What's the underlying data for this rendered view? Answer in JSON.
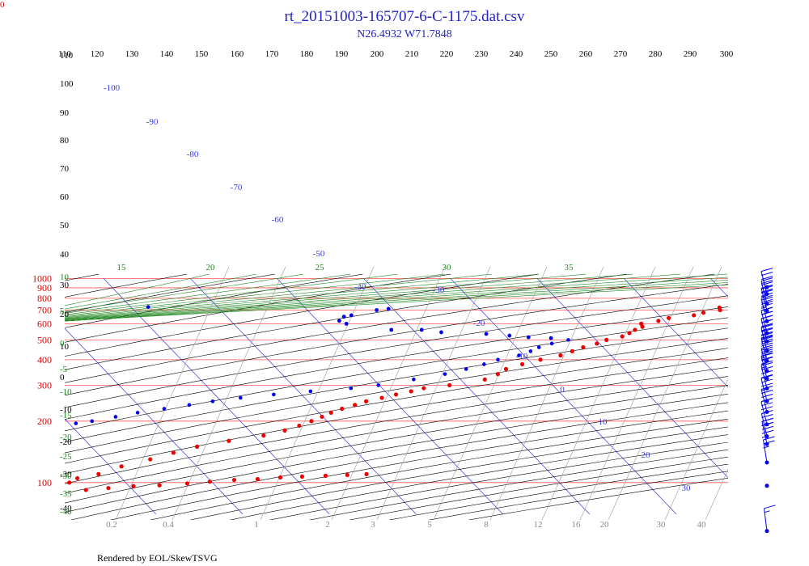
{
  "corner_label": "0",
  "title": "rt_20151003-165707-6-C-1175.dat.csv",
  "subtitle": "N26.4932 W71.7848",
  "footer": "Rendered by EOL/SkewTSVG",
  "colors": {
    "isobar": "#ff5555",
    "isotherm": "#3a3ae0",
    "dry_adiabat": "#000000",
    "moist_adiabat": "#228822",
    "mixing_ratio": "#9a9a9a",
    "temperature": "#ee0000",
    "dewpoint": "#0000ee",
    "title": "#1f1fcc"
  },
  "chart_data": {
    "type": "scatter",
    "x_axis": "temperature (C, skewed)",
    "y_axis": "pressure (hPa, log)",
    "pressure_levels": [
      1000,
      900,
      800,
      700,
      600,
      500,
      400,
      300,
      200,
      100
    ],
    "theta_top_labels": [
      "110",
      "120",
      "130",
      "140",
      "150",
      "160",
      "170",
      "180",
      "190",
      "200",
      "210",
      "220",
      "230",
      "240",
      "250",
      "260",
      "270",
      "280",
      "290",
      "300"
    ],
    "theta_left_labels": [
      "110",
      "100",
      "90",
      "80",
      "70",
      "60",
      "50",
      "40",
      "30",
      "20",
      "10",
      "0",
      "-10",
      "-20",
      "-30",
      "-40"
    ],
    "isotherm_labels": [
      -100,
      -90,
      -80,
      -70,
      -60,
      -50,
      -40,
      -30,
      -20,
      -10,
      0,
      10,
      20,
      30
    ],
    "moist_labels_top": [
      "15",
      "20",
      "25",
      "30",
      "35"
    ],
    "moist_labels_left": [
      "10",
      "5",
      "0",
      "-5",
      "-10",
      "-15",
      "-20",
      "-25",
      "-30",
      "-35",
      "-40"
    ],
    "mixing_ratio_labels": [
      "0.2",
      "0.4",
      "1",
      "2",
      "3",
      "5",
      "8",
      "12",
      "16",
      "20",
      "30",
      "40"
    ],
    "temperature": [
      [
        1000,
        23.5
      ],
      [
        980,
        22.5
      ],
      [
        960,
        22.3
      ],
      [
        940,
        23.2
      ],
      [
        920,
        24.5
      ],
      [
        900,
        25.1
      ],
      [
        880,
        24.7
      ],
      [
        860,
        25.4
      ],
      [
        840,
        24.6
      ],
      [
        820,
        24.4
      ],
      [
        800,
        23.7
      ],
      [
        780,
        21.4
      ],
      [
        760,
        21.7
      ],
      [
        740,
        19.4
      ],
      [
        720,
        17.8
      ],
      [
        700,
        17.6
      ],
      [
        680,
        15.4
      ],
      [
        660,
        14.0
      ],
      [
        640,
        10.8
      ],
      [
        620,
        9.3
      ],
      [
        600,
        7.0
      ],
      [
        580,
        6.8
      ],
      [
        560,
        5.6
      ],
      [
        540,
        4.6
      ],
      [
        520,
        3.4
      ],
      [
        500,
        1.2
      ],
      [
        480,
        -0.3
      ],
      [
        460,
        -2.3
      ],
      [
        440,
        -4.0
      ],
      [
        420,
        -5.8
      ],
      [
        400,
        -8.6
      ],
      [
        380,
        -11.2
      ],
      [
        360,
        -13.6
      ],
      [
        340,
        -15.1
      ],
      [
        320,
        -17.2
      ],
      [
        300,
        -21.9
      ],
      [
        290,
        -25.2
      ],
      [
        280,
        -27.0
      ],
      [
        270,
        -29.1
      ],
      [
        260,
        -31.1
      ],
      [
        250,
        -33.3
      ],
      [
        240,
        -35.0
      ],
      [
        230,
        -36.9
      ],
      [
        220,
        -38.6
      ],
      [
        210,
        -40.1
      ],
      [
        200,
        -41.8
      ],
      [
        190,
        -43.7
      ],
      [
        180,
        -45.9
      ],
      [
        170,
        -48.9
      ],
      [
        160,
        -53.5
      ],
      [
        150,
        -57.8
      ],
      [
        140,
        -61.2
      ],
      [
        130,
        -64.6
      ],
      [
        120,
        -68.7
      ],
      [
        110,
        -72.2
      ],
      [
        105,
        -75.1
      ],
      [
        100,
        -76.5
      ],
      [
        95,
        -78.2
      ],
      [
        90,
        -78.5
      ],
      [
        92,
        -75.4
      ],
      [
        94,
        -72.6
      ],
      [
        96,
        -69.5
      ],
      [
        97,
        -66.4
      ],
      [
        99,
        -63.0
      ],
      [
        101,
        -60.2
      ],
      [
        103,
        -57.2
      ],
      [
        104,
        -54.4
      ],
      [
        106,
        -51.6
      ],
      [
        107,
        -49.0
      ],
      [
        108,
        -46.2
      ],
      [
        109,
        -43.6
      ],
      [
        110,
        -41.3
      ]
    ],
    "dewpoint": [
      [
        500,
        -3.2
      ],
      [
        480,
        -5.5
      ],
      [
        460,
        -7.4
      ],
      [
        440,
        -8.8
      ],
      [
        420,
        -10.6
      ],
      [
        400,
        -13.5
      ],
      [
        380,
        -15.6
      ],
      [
        360,
        -18.2
      ],
      [
        340,
        -21.2
      ],
      [
        320,
        -25.4
      ],
      [
        300,
        -30.1
      ],
      [
        290,
        -33.6
      ],
      [
        280,
        -38.6
      ],
      [
        270,
        -43.2
      ],
      [
        260,
        -47.4
      ],
      [
        250,
        -51.0
      ],
      [
        240,
        -54.1
      ],
      [
        230,
        -57.4
      ],
      [
        220,
        -60.9
      ],
      [
        210,
        -63.9
      ],
      [
        200,
        -67.1
      ],
      [
        195,
        -69.2
      ],
      [
        190,
        -71.0
      ],
      [
        185,
        -73.2
      ],
      [
        180,
        -76.3
      ]
    ],
    "dewpoint_scatter": [
      [
        510,
        -5.0
      ],
      [
        515,
        -7.5
      ],
      [
        525,
        -9.5
      ],
      [
        535,
        -12.0
      ],
      [
        545,
        -17.0
      ],
      [
        560,
        -19.0
      ],
      [
        560,
        -22.5
      ],
      [
        600,
        -27.0
      ],
      [
        620,
        -27.5
      ],
      [
        650,
        -26.5
      ],
      [
        660,
        -25.5
      ],
      [
        700,
        -22.0
      ],
      [
        710,
        -20.5
      ],
      [
        725,
        -48.0
      ]
    ],
    "wind_barbs": [
      {
        "p": 60,
        "dir": 210,
        "speed": 15
      },
      {
        "p": 100,
        "dir": 0,
        "speed": 0
      },
      {
        "p": 130,
        "dir": 320,
        "speed": 25
      },
      {
        "p": 160,
        "dir": 300,
        "speed": 45
      },
      {
        "p": 175,
        "dir": 290,
        "speed": 40
      },
      {
        "p": 200,
        "dir": 270,
        "speed": 35
      },
      {
        "p": 230,
        "dir": 280,
        "speed": 40
      },
      {
        "p": 260,
        "dir": 270,
        "speed": 35
      },
      {
        "p": 300,
        "dir": 270,
        "speed": 40
      },
      {
        "p": 335,
        "dir": 270,
        "speed": 35
      },
      {
        "p": 365,
        "dir": 270,
        "speed": 45
      },
      {
        "p": 410,
        "dir": 270,
        "speed": 55
      },
      {
        "p": 460,
        "dir": 270,
        "speed": 50
      },
      {
        "p": 510,
        "dir": 270,
        "speed": 60
      },
      {
        "p": 560,
        "dir": 270,
        "speed": 55
      },
      {
        "p": 640,
        "dir": 270,
        "speed": 50
      },
      {
        "p": 720,
        "dir": 270,
        "speed": 55
      },
      {
        "p": 780,
        "dir": 270,
        "speed": 45
      },
      {
        "p": 870,
        "dir": 270,
        "speed": 40
      },
      {
        "p": 940,
        "dir": 0,
        "speed": 0
      }
    ]
  }
}
